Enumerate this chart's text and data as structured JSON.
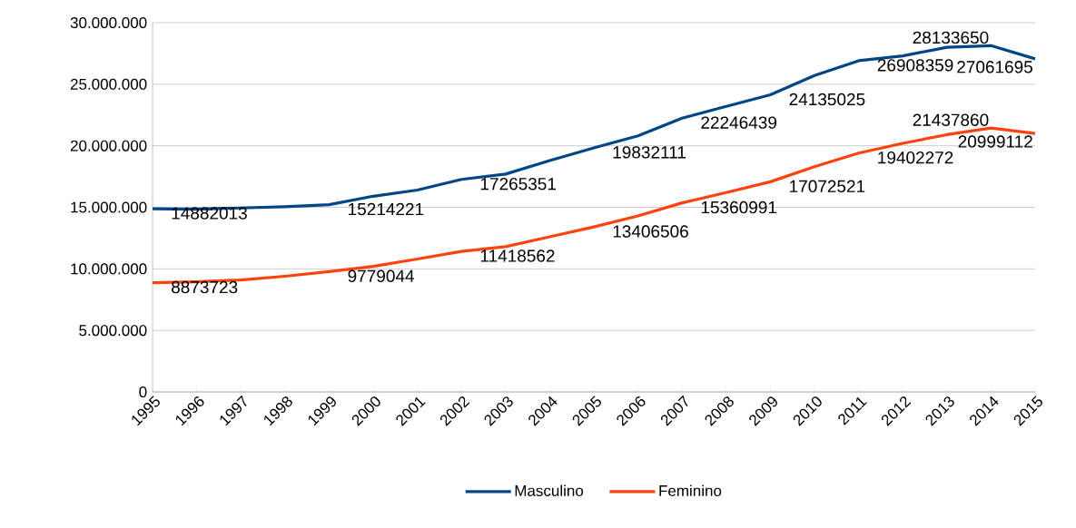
{
  "chart_data": {
    "type": "line",
    "categories": [
      "1995",
      "1996",
      "1997",
      "1998",
      "1999",
      "2000",
      "2001",
      "2002",
      "2003",
      "2004",
      "2005",
      "2006",
      "2007",
      "2008",
      "2009",
      "2010",
      "2011",
      "2012",
      "2013",
      "2014",
      "2015"
    ],
    "series": [
      {
        "name": "Masculino",
        "color": "#004586",
        "values": [
          14882013,
          14850000,
          14950000,
          15050000,
          15214221,
          15900000,
          16400000,
          17265351,
          17700000,
          18800000,
          19832111,
          20800000,
          22246439,
          23200000,
          24135025,
          25700000,
          26908359,
          27300000,
          28000000,
          28133650,
          27061695
        ],
        "value_labels": [
          "14882013",
          null,
          null,
          null,
          "15214221",
          null,
          null,
          "17265351",
          null,
          null,
          "19832111",
          null,
          "22246439",
          null,
          "24135025",
          null,
          "26908359",
          null,
          null,
          "28133650",
          "27061695"
        ]
      },
      {
        "name": "Feminino",
        "color": "#ff420e",
        "values": [
          8873723,
          8950000,
          9100000,
          9400000,
          9779044,
          10200000,
          10800000,
          11418562,
          11800000,
          12600000,
          13406506,
          14300000,
          15360991,
          16200000,
          17072521,
          18300000,
          19402272,
          20200000,
          20900000,
          21437860,
          20999112
        ],
        "value_labels": [
          "8873723",
          null,
          null,
          null,
          "9779044",
          null,
          null,
          "11418562",
          null,
          null,
          "13406506",
          null,
          "15360991",
          null,
          "17072521",
          null,
          "19402272",
          null,
          null,
          "21437860",
          "20999112"
        ]
      }
    ],
    "ylim": [
      0,
      30000000
    ],
    "yticks": [
      {
        "value": 0,
        "label": "0"
      },
      {
        "value": 5000000,
        "label": "5.000.000"
      },
      {
        "value": 10000000,
        "label": "10.000.000"
      },
      {
        "value": 15000000,
        "label": "15.000.000"
      },
      {
        "value": 20000000,
        "label": "20.000.000"
      },
      {
        "value": 25000000,
        "label": "25.000.000"
      },
      {
        "value": 30000000,
        "label": "30.000.000"
      }
    ],
    "grid": "y",
    "legend": "bottom",
    "marker": "none",
    "line_style": "solid"
  }
}
